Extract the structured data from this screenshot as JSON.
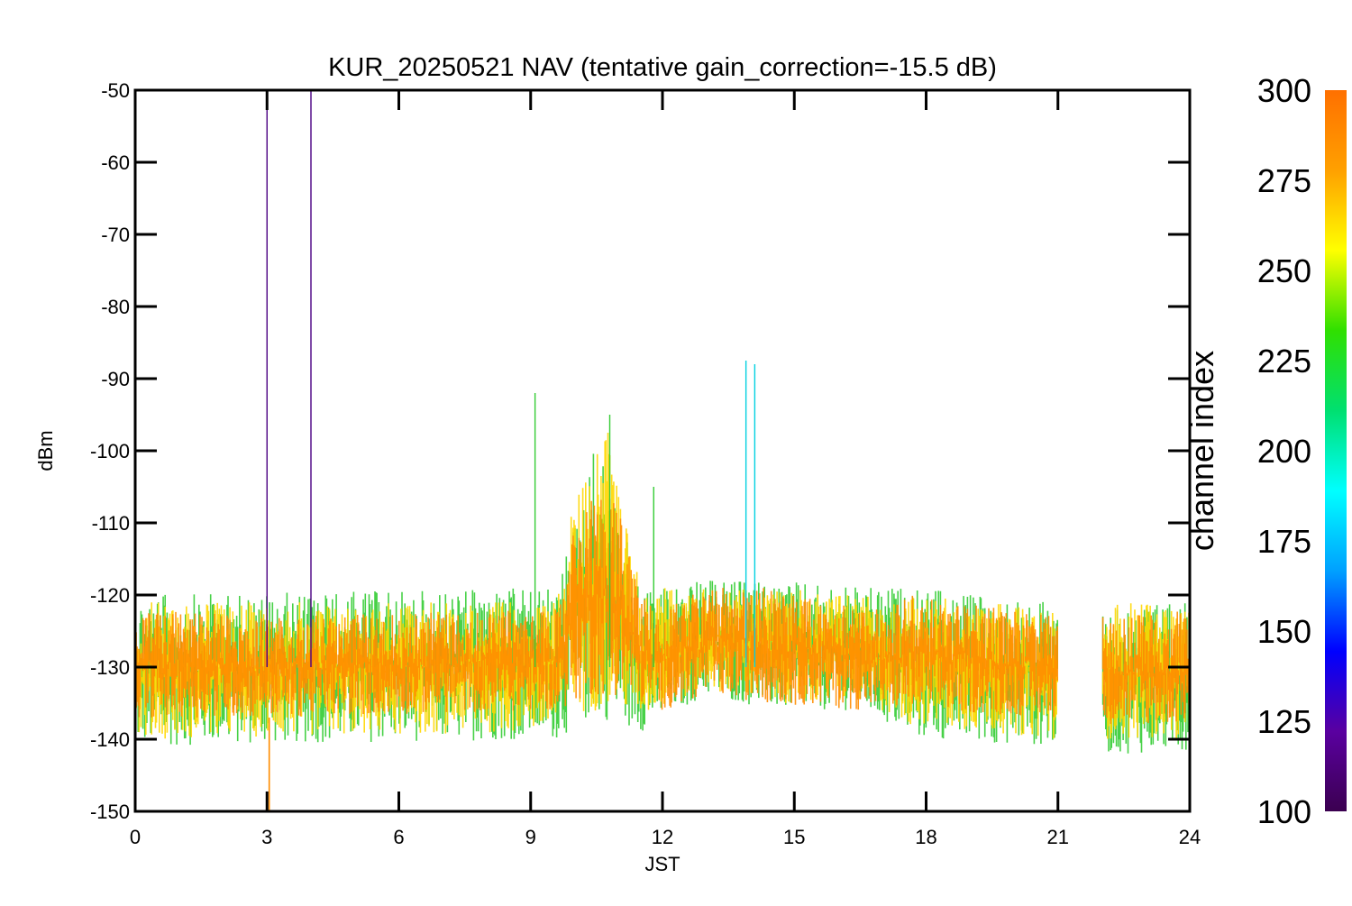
{
  "chart_data": {
    "type": "line",
    "title": "KUR_20250521 NAV (tentative gain_correction=-15.5 dB)",
    "xlabel": "JST",
    "ylabel": "dBm",
    "xlim": [
      0,
      24
    ],
    "ylim": [
      -150,
      -50
    ],
    "x_ticks": [
      0,
      3,
      6,
      9,
      12,
      15,
      18,
      21,
      24
    ],
    "x_tick_labels": [
      "0",
      "3",
      "6",
      "9",
      "12",
      "15",
      "18",
      "21",
      "24"
    ],
    "y_ticks": [
      -50,
      -60,
      -70,
      -80,
      -90,
      -100,
      -110,
      -120,
      -130,
      -140,
      -150
    ],
    "y_tick_labels": [
      "-50",
      "-60",
      "-70",
      "-80",
      "-90",
      "-100",
      "-110",
      "-120",
      "-130",
      "-140",
      "-150"
    ],
    "grid": false,
    "data_gap": [
      21.0,
      22.0
    ],
    "colorbar": {
      "label": "channel index",
      "range": [
        100,
        300
      ],
      "ticks": [
        100,
        125,
        150,
        175,
        200,
        225,
        250,
        275,
        300
      ],
      "tick_labels": [
        "100",
        "125",
        "150",
        "175",
        "200",
        "225",
        "250",
        "275",
        "300"
      ],
      "colormap": [
        "#3b0050",
        "#5a00a0",
        "#0000ff",
        "#00a0ff",
        "#00ffff",
        "#00e070",
        "#30e000",
        "#ffff00",
        "#ffa000",
        "#ff7000"
      ]
    },
    "series": [
      {
        "channel": 300,
        "color": "#ff8c00",
        "role": "band core",
        "x": [
          0,
          3,
          3.1,
          9.6,
          10.0,
          10.5,
          11.0,
          11.5,
          12,
          13.0,
          14.5,
          16.6,
          17.6,
          21.0,
          22.0,
          24
        ],
        "y_low": [
          -137,
          -137,
          -137,
          -136,
          -135,
          -134,
          -134,
          -135,
          -136,
          -134,
          -135,
          -136,
          -136,
          -137,
          -138,
          -138
        ],
        "y_high": [
          -122,
          -123,
          -123,
          -122,
          -110,
          -103,
          -108,
          -120,
          -122,
          -119,
          -119,
          -122,
          -120,
          -123,
          -123,
          -122
        ]
      },
      {
        "channel": 270,
        "color": "#ffd700",
        "role": "upper spread",
        "x": [
          0,
          9.6,
          10.0,
          10.5,
          10.8,
          11.5,
          13.0,
          14.5,
          16.6,
          17.6,
          21,
          22,
          24
        ],
        "y_low": [
          -140,
          -139,
          -137,
          -136,
          -136,
          -137,
          -133,
          -135,
          -135,
          -138,
          -140,
          -140,
          -140
        ],
        "y_high": [
          -121,
          -121,
          -106,
          -98,
          -97,
          -119,
          -119,
          -119,
          -120,
          -120,
          -122,
          -121,
          -121
        ]
      },
      {
        "channel": 230,
        "color": "#33cc33",
        "role": "outer spread",
        "x": [
          0,
          9.6,
          10.5,
          11.5,
          13.0,
          14.5,
          16.6,
          17.6,
          21,
          22,
          24
        ],
        "y_low": [
          -141,
          -140,
          -137,
          -139,
          -134,
          -136,
          -136,
          -140,
          -141,
          -142,
          -142
        ],
        "y_high": [
          -120,
          -119,
          -98,
          -119,
          -118,
          -118,
          -119,
          -119,
          -121,
          -121,
          -121
        ]
      },
      {
        "channel": 175,
        "color": "#00d0e0",
        "role": "spikes",
        "x": [
          13.9,
          14.1
        ],
        "y": [
          -87.5,
          -88
        ]
      },
      {
        "channel": 225,
        "color": "#33cc33",
        "role": "spikes",
        "x": [
          9.1,
          10.8,
          11.8
        ],
        "y": [
          -92,
          -95,
          -105
        ]
      },
      {
        "channel": 105,
        "color": "#4b0082",
        "role": "spikes",
        "x": [
          3.0,
          4.0
        ],
        "y": [
          -50,
          -50
        ]
      }
    ]
  }
}
